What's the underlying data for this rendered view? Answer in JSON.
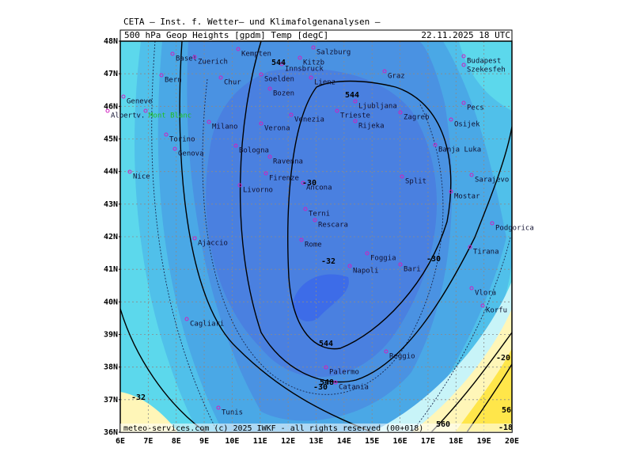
{
  "header": {
    "institute": "CETA — Inst. f. Wetter— und Klimafolgenanalysen —",
    "title": "500 hPa Geop Heights [gpdm] Temp [degC]",
    "date": "22.11.2025 18 UTC"
  },
  "axes": {
    "lat_labels": [
      "48N",
      "47N",
      "46N",
      "45N",
      "44N",
      "43N",
      "42N",
      "41N",
      "40N",
      "39N",
      "38N",
      "37N",
      "36N"
    ],
    "lon_labels": [
      "6E",
      "7E",
      "8E",
      "9E",
      "10E",
      "11E",
      "12E",
      "13E",
      "14E",
      "15E",
      "16E",
      "17E",
      "18E",
      "19E",
      "20E"
    ]
  },
  "cities": [
    "Basel",
    "Zuerich",
    "Kempten",
    "Kitzb",
    "Salzburg",
    "Innsbruck",
    "Budapest",
    "Szekesfeh",
    "Bern",
    "Chur",
    "Soelden",
    "Lienz",
    "Graz",
    "Bozen",
    "Geneve",
    "Ljubljana",
    "Pecs",
    "Albertv.",
    "Mont Blanc",
    "Milano",
    "Venezia",
    "Trieste",
    "Zagreb",
    "Osijek",
    "Verona",
    "Rijeka",
    "Torino",
    "Banja Luka",
    "Bologna",
    "Genova",
    "Ravenna",
    "Firenze",
    "Split",
    "Sarajevo",
    "Nice",
    "Ancona",
    "Livorno",
    "Mostar",
    "Terni",
    "Rescara",
    "Podgorica",
    "Ajaccio",
    "Rome",
    "Tirana",
    "Foggia",
    "Bari",
    "Napoli",
    "Vlora",
    "Korfu",
    "Cagliari",
    "Reggio",
    "Palermo",
    "Catania",
    "Tunis"
  ],
  "contour_labels": [
    "544",
    "544",
    "544",
    "548",
    "-30",
    "-30",
    "-32",
    "-30",
    "-32",
    "-20",
    "56",
    "560",
    "-18"
  ],
  "footer": "meteo-services.com (c) 2025 IWKF - all rights reserved (00+018)"
}
